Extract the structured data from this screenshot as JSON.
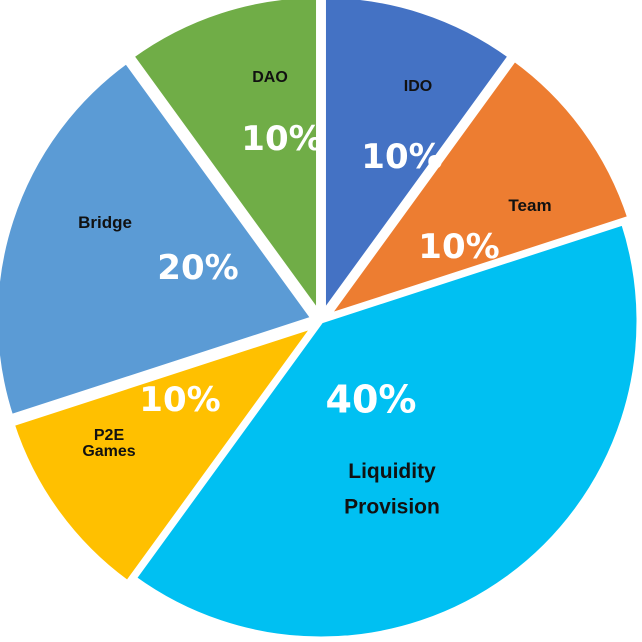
{
  "chart_data": {
    "type": "pie",
    "title": "",
    "slices": [
      {
        "label": "Liquidity Provision",
        "label_lines": [
          "Liquidity",
          "Provision"
        ],
        "value": 40,
        "value_label": "40%",
        "color": "#00C0F2"
      },
      {
        "label": "P2E Games",
        "label_lines": [
          "P2E",
          "Games"
        ],
        "value": 10,
        "value_label": "10%",
        "color": "#FFC000"
      },
      {
        "label": "Bridge",
        "label_lines": [
          "Bridge"
        ],
        "value": 20,
        "value_label": "20%",
        "color": "#5B9BD5"
      },
      {
        "label": "DAO",
        "label_lines": [
          "DAO"
        ],
        "value": 10,
        "value_label": "10%",
        "color": "#70AD47"
      },
      {
        "label": "IDO",
        "label_lines": [
          "IDO"
        ],
        "value": 10,
        "value_label": "10%",
        "color": "#4472C4"
      },
      {
        "label": "Team",
        "label_lines": [
          "Team"
        ],
        "value": 10,
        "value_label": "10%",
        "color": "#ED7D31"
      }
    ]
  }
}
